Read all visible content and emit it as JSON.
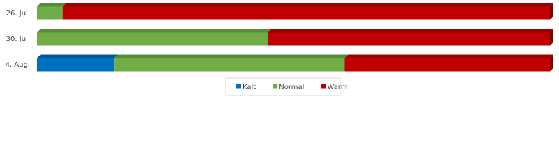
{
  "chart_data": {
    "type": "stacked-bar-horizontal",
    "categories": [
      "26. Jul.",
      "30. Jul.",
      "4. Aug."
    ],
    "series": [
      {
        "name": "Kalt",
        "color": "#0070c0",
        "values": [
          0,
          0,
          15
        ]
      },
      {
        "name": "Normal",
        "color": "#70ad47",
        "values": [
          5,
          45,
          45
        ]
      },
      {
        "name": "Warm",
        "color": "#c00000",
        "values": [
          95,
          55,
          40
        ]
      }
    ],
    "xlim": [
      0,
      100
    ],
    "legend": "bottom"
  }
}
